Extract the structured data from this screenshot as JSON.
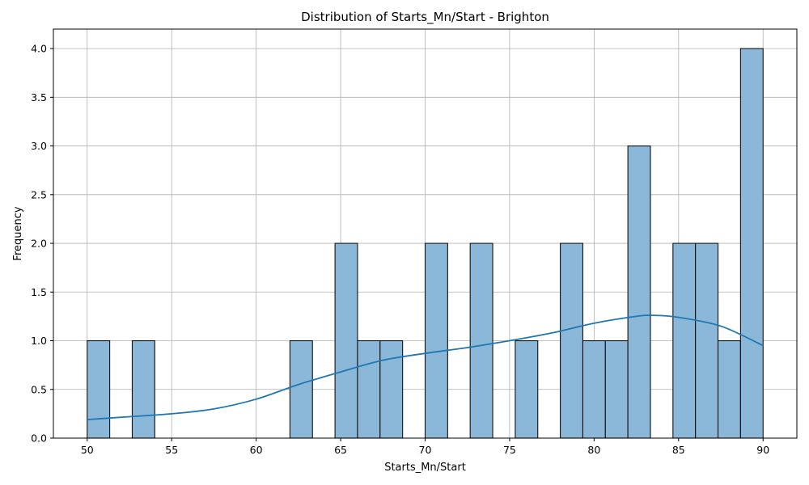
{
  "chart_data": {
    "type": "bar",
    "title": "Distribution of Starts_Mn/Start - Brighton",
    "xlabel": "Starts_Mn/Start",
    "ylabel": "Frequency",
    "xlim": [
      48.0,
      92.0
    ],
    "ylim": [
      0,
      4.2
    ],
    "xticks": [
      50,
      55,
      60,
      65,
      70,
      75,
      80,
      85,
      90
    ],
    "xtick_labels": [
      "50",
      "55",
      "60",
      "65",
      "70",
      "75",
      "80",
      "85",
      "90"
    ],
    "yticks": [
      0,
      0.5,
      1,
      1.5,
      2,
      2.5,
      3,
      3.5,
      4
    ],
    "ytick_labels": [
      "0.0",
      "0.5",
      "1.0",
      "1.5",
      "2.0",
      "2.5",
      "3.0",
      "3.5",
      "4.0"
    ],
    "grid": true,
    "bins": {
      "start": 50,
      "end": 90,
      "counts": [
        1,
        0,
        1,
        0,
        0,
        0,
        0,
        0,
        0,
        1,
        0,
        2,
        1,
        1,
        0,
        2,
        0,
        2,
        0,
        1,
        0,
        2,
        1,
        1,
        3,
        0,
        2,
        2,
        1,
        4
      ]
    },
    "kde": {
      "x": [
        50,
        52.5,
        55,
        57.5,
        60,
        62.5,
        65,
        67.5,
        70,
        72.5,
        75,
        77.5,
        80,
        82.5,
        83.6,
        85,
        87.5,
        90
      ],
      "y": [
        0.19,
        0.22,
        0.25,
        0.3,
        0.4,
        0.55,
        0.68,
        0.8,
        0.87,
        0.93,
        1.0,
        1.08,
        1.18,
        1.25,
        1.26,
        1.24,
        1.15,
        0.95
      ]
    },
    "colors": {
      "bar_fill": "#8bb7d8",
      "bar_edge": "#111111",
      "kde_line": "#1f77b4",
      "grid": "#b0b0b0"
    }
  }
}
